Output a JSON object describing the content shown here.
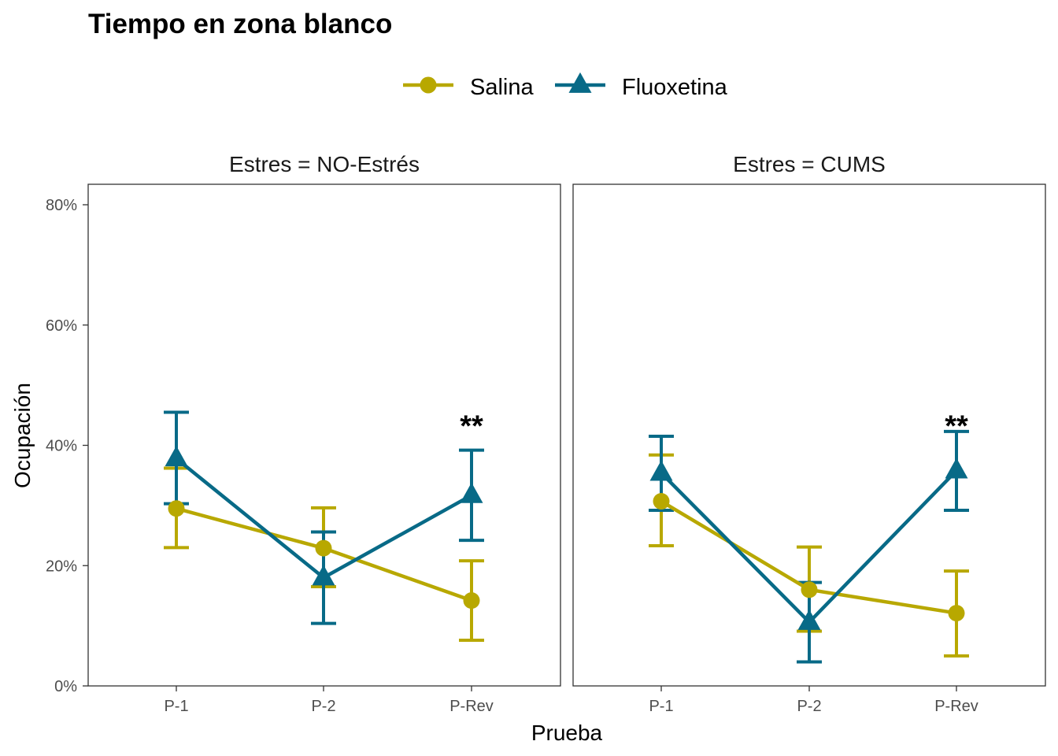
{
  "chart_data": {
    "type": "line",
    "title": "Tiempo en zona blanco",
    "xlabel": "Prueba",
    "ylabel": "Ocupación",
    "categories": [
      "P-1",
      "P-2",
      "P-Rev"
    ],
    "ylim": [
      0,
      0.8
    ],
    "y_ticks": [
      0,
      0.2,
      0.4,
      0.6,
      0.8
    ],
    "y_tick_labels": [
      "0%",
      "20%",
      "40%",
      "60%",
      "80%"
    ],
    "grid": false,
    "legend_position": "top",
    "legend": [
      {
        "name": "Salina",
        "color": "#b8a800",
        "marker": "circle"
      },
      {
        "name": "Fluoxetina",
        "color": "#086a87",
        "marker": "triangle"
      }
    ],
    "panels": [
      {
        "strip": "Estres = NO-Estrés",
        "series": [
          {
            "name": "Salina",
            "values": [
              0.295,
              0.229,
              0.142
            ],
            "lower": [
              0.23,
              0.165,
              0.076
            ],
            "upper": [
              0.362,
              0.296,
              0.208
            ]
          },
          {
            "name": "Fluoxetina",
            "values": [
              0.378,
              0.18,
              0.317
            ],
            "lower": [
              0.303,
              0.104,
              0.242
            ],
            "upper": [
              0.455,
              0.256,
              0.392
            ]
          }
        ],
        "annotations": [
          {
            "category": "P-Rev",
            "value": 0.455,
            "text": "**"
          }
        ]
      },
      {
        "strip": "Estres = CUMS",
        "series": [
          {
            "name": "Salina",
            "values": [
              0.307,
              0.16,
              0.121
            ],
            "lower": [
              0.233,
              0.091,
              0.05
            ],
            "upper": [
              0.384,
              0.231,
              0.191
            ]
          },
          {
            "name": "Fluoxetina",
            "values": [
              0.354,
              0.106,
              0.358
            ],
            "lower": [
              0.292,
              0.04,
              0.292
            ],
            "upper": [
              0.415,
              0.172,
              0.423
            ]
          }
        ],
        "annotations": [
          {
            "category": "P-Rev",
            "value": 0.455,
            "text": "**"
          }
        ]
      }
    ]
  }
}
